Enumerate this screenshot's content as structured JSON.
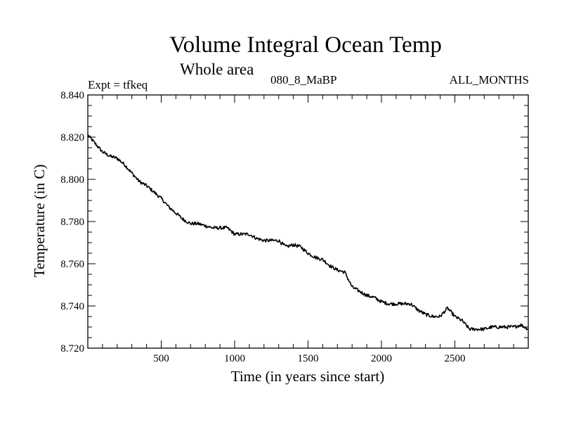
{
  "header": {
    "title": "Volume Integral Ocean Temp",
    "subtitle": "Whole area",
    "experiment": "Expt = tfkeq",
    "run": "080_8_MaBP",
    "period": "ALL_MONTHS"
  },
  "chart_data": {
    "type": "line",
    "title": "Volume Integral Ocean Temp",
    "subtitle": "Whole area",
    "xlabel": "Time (in years since start)",
    "ylabel": "Temperature (in C)",
    "xlim": [
      0,
      3000
    ],
    "ylim": [
      8.72,
      8.84
    ],
    "xticks": [
      500,
      1000,
      1500,
      2000,
      2500
    ],
    "xtick_labels": [
      "500",
      "1000",
      "1500",
      "2000",
      "2500"
    ],
    "yticks": [
      8.72,
      8.74,
      8.76,
      8.78,
      8.8,
      8.82,
      8.84
    ],
    "ytick_labels": [
      "8.720",
      "8.740",
      "8.760",
      "8.780",
      "8.800",
      "8.820",
      "8.840"
    ],
    "grid": false,
    "line_color": "#000000",
    "series": [
      {
        "x": [
          0,
          50,
          100,
          150,
          200,
          250,
          300,
          350,
          400,
          450,
          500,
          550,
          600,
          650,
          700,
          750,
          800,
          850,
          900,
          950,
          1000,
          1050,
          1100,
          1150,
          1200,
          1250,
          1300,
          1350,
          1400,
          1450,
          1500,
          1550,
          1600,
          1650,
          1700,
          1750,
          1800,
          1850,
          1900,
          1950,
          2000,
          2050,
          2100,
          2150,
          2200,
          2250,
          2300,
          2350,
          2400,
          2450,
          2500,
          2550,
          2600,
          2650,
          2700,
          2750,
          2800,
          2850,
          2900,
          2950,
          3000
        ],
        "y": [
          8.821,
          8.817,
          8.813,
          8.811,
          8.81,
          8.807,
          8.803,
          8.799,
          8.797,
          8.794,
          8.791,
          8.787,
          8.784,
          8.781,
          8.779,
          8.779,
          8.778,
          8.777,
          8.777,
          8.777,
          8.774,
          8.774,
          8.774,
          8.772,
          8.771,
          8.771,
          8.771,
          8.768,
          8.769,
          8.768,
          8.765,
          8.763,
          8.762,
          8.759,
          8.757,
          8.756,
          8.749,
          8.747,
          8.745,
          8.744,
          8.742,
          8.741,
          8.741,
          8.741,
          8.741,
          8.738,
          8.736,
          8.735,
          8.735,
          8.739,
          8.735,
          8.733,
          8.729,
          8.729,
          8.729,
          8.73,
          8.73,
          8.73,
          8.73,
          8.731,
          8.729
        ]
      }
    ]
  }
}
